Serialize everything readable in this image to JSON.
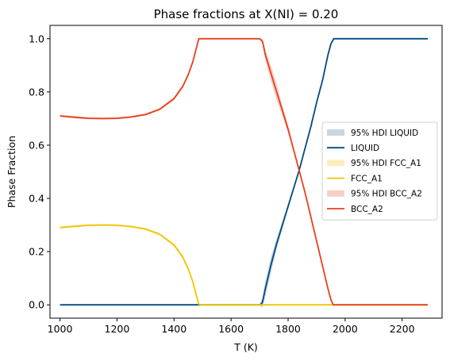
{
  "chart_data": {
    "type": "line",
    "title": "Phase fractions at X(NI) = 0.20",
    "xlabel": "T (K)",
    "ylabel": "Phase Fraction",
    "xlim": [
      965,
      2340
    ],
    "ylim": [
      -0.05,
      1.05
    ],
    "xticks": [
      1000,
      1200,
      1400,
      1600,
      1800,
      2000,
      2200
    ],
    "yticks": [
      0.0,
      0.2,
      0.4,
      0.6,
      0.8,
      1.0
    ],
    "xtick_labels": [
      "1000",
      "1200",
      "1400",
      "1600",
      "1800",
      "2000",
      "2200"
    ],
    "ytick_labels": [
      "0.0",
      "0.2",
      "0.4",
      "0.6",
      "0.8",
      "1.0"
    ],
    "grid": false,
    "legend_position": "center-right",
    "legend": [
      {
        "label": "95% HDI LIQUID",
        "kind": "band",
        "series": "LIQUID"
      },
      {
        "label": "LIQUID",
        "kind": "line",
        "series": "LIQUID"
      },
      {
        "label": "95% HDI FCC_A1",
        "kind": "band",
        "series": "FCC_A1"
      },
      {
        "label": "FCC_A1",
        "kind": "line",
        "series": "FCC_A1"
      },
      {
        "label": "95% HDI BCC_A2",
        "kind": "band",
        "series": "BCC_A2"
      },
      {
        "label": "BCC_A2",
        "kind": "line",
        "series": "BCC_A2"
      }
    ],
    "series": [
      {
        "name": "LIQUID",
        "color": "#004a80",
        "band_color": "#c9d6e2",
        "x": [
          1000,
          1100,
          1200,
          1300,
          1400,
          1500,
          1600,
          1700,
          1705,
          1710,
          1720,
          1740,
          1760,
          1780,
          1800,
          1820,
          1840,
          1860,
          1880,
          1900,
          1920,
          1940,
          1950,
          1960,
          2000,
          2100,
          2200,
          2290
        ],
        "y": [
          0,
          0,
          0,
          0,
          0,
          0,
          0,
          0,
          0.003,
          0.01,
          0.06,
          0.15,
          0.23,
          0.3,
          0.37,
          0.44,
          0.51,
          0.59,
          0.67,
          0.76,
          0.84,
          0.94,
          0.98,
          1.0,
          1.0,
          1.0,
          1.0,
          1.0
        ],
        "band_width": [
          0,
          0,
          0,
          0,
          0,
          0,
          0,
          0,
          0.01,
          0.02,
          0.03,
          0.03,
          0.02,
          0.015,
          0.01,
          0.008,
          0.006,
          0.005,
          0.004,
          0.004,
          0.004,
          0.004,
          0.003,
          0.002,
          0,
          0,
          0,
          0
        ]
      },
      {
        "name": "FCC_A1",
        "color": "#f2c500",
        "band_color": "#fbefbf",
        "x": [
          1000,
          1050,
          1100,
          1150,
          1200,
          1250,
          1300,
          1350,
          1400,
          1430,
          1450,
          1465,
          1475,
          1482,
          1487,
          1500,
          1600,
          1700,
          1800,
          1900,
          1960,
          2000,
          2100,
          2200,
          2290
        ],
        "y": [
          0.29,
          0.295,
          0.299,
          0.3,
          0.299,
          0.294,
          0.285,
          0.265,
          0.225,
          0.18,
          0.135,
          0.09,
          0.05,
          0.02,
          0.002,
          0,
          0,
          0,
          0,
          0,
          0,
          0,
          0,
          0,
          0
        ],
        "band_width": [
          0.004,
          0.004,
          0.004,
          0.004,
          0.004,
          0.004,
          0.004,
          0.005,
          0.006,
          0.007,
          0.008,
          0.008,
          0.007,
          0.005,
          0.003,
          0,
          0,
          0,
          0,
          0,
          0,
          0,
          0,
          0,
          0
        ]
      },
      {
        "name": "BCC_A2",
        "color": "#e8401c",
        "band_color": "#f6d0c8",
        "x": [
          1000,
          1050,
          1100,
          1150,
          1200,
          1250,
          1300,
          1350,
          1400,
          1430,
          1450,
          1465,
          1475,
          1482,
          1487,
          1500,
          1600,
          1700,
          1710,
          1720,
          1740,
          1760,
          1780,
          1800,
          1820,
          1840,
          1860,
          1880,
          1900,
          1920,
          1940,
          1950,
          1958,
          2000,
          2100,
          2200,
          2290
        ],
        "y": [
          0.71,
          0.705,
          0.701,
          0.7,
          0.701,
          0.706,
          0.715,
          0.735,
          0.775,
          0.82,
          0.865,
          0.91,
          0.95,
          0.98,
          1.0,
          1.0,
          1.0,
          1.0,
          0.99,
          0.94,
          0.87,
          0.8,
          0.73,
          0.66,
          0.58,
          0.5,
          0.42,
          0.33,
          0.24,
          0.15,
          0.06,
          0.02,
          0.0,
          0,
          0,
          0,
          0
        ],
        "band_width": [
          0.004,
          0.004,
          0.004,
          0.004,
          0.004,
          0.004,
          0.004,
          0.005,
          0.006,
          0.007,
          0.008,
          0.008,
          0.007,
          0.005,
          0.003,
          0,
          0,
          0,
          0.01,
          0.02,
          0.03,
          0.03,
          0.02,
          0.015,
          0.01,
          0.008,
          0.006,
          0.005,
          0.005,
          0.005,
          0.004,
          0.003,
          0.002,
          0,
          0,
          0,
          0
        ]
      }
    ]
  }
}
